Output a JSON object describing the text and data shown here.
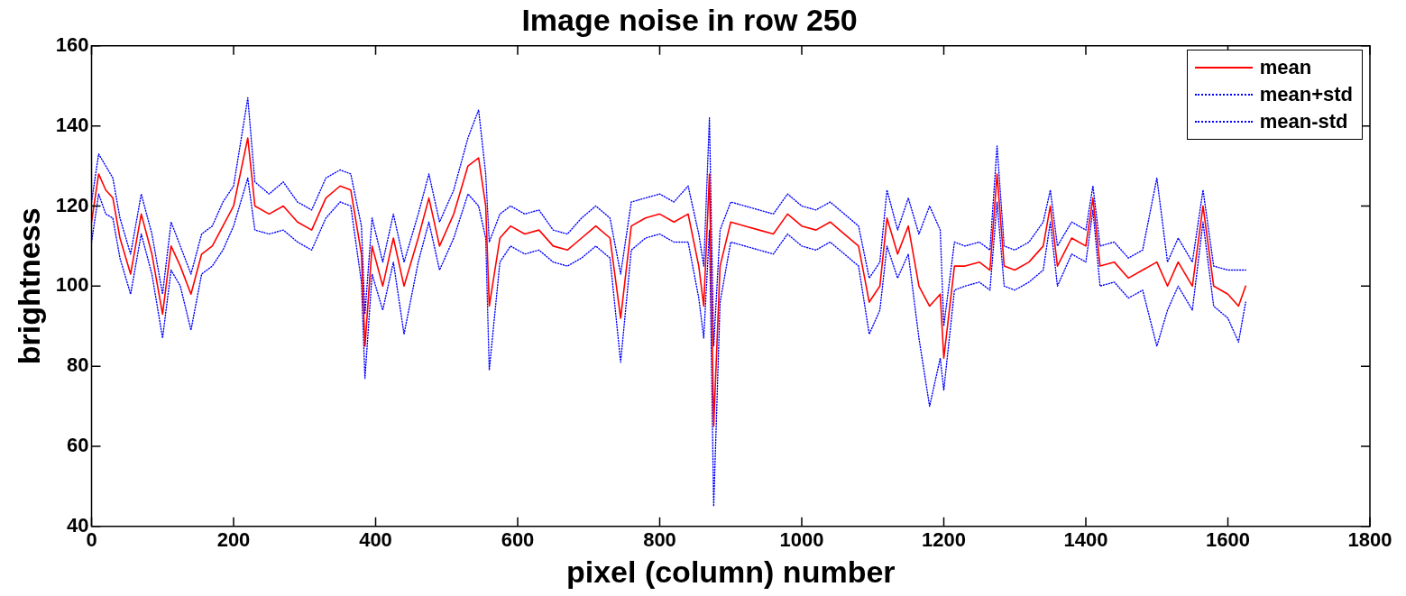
{
  "chart_data": {
    "type": "line",
    "title": "Image noise in row 250",
    "xlabel": "pixel (column) number",
    "ylabel": "brightness",
    "x": [
      0,
      10,
      20,
      30,
      40,
      55,
      70,
      85,
      100,
      112,
      125,
      140,
      155,
      170,
      185,
      200,
      220,
      230,
      250,
      270,
      290,
      310,
      330,
      350,
      365,
      380,
      385,
      395,
      410,
      425,
      440,
      460,
      475,
      490,
      510,
      530,
      545,
      555,
      560,
      575,
      590,
      610,
      630,
      650,
      670,
      690,
      710,
      730,
      745,
      760,
      780,
      800,
      820,
      840,
      855,
      862,
      870,
      876,
      885,
      900,
      920,
      940,
      960,
      980,
      1000,
      1020,
      1040,
      1060,
      1080,
      1095,
      1110,
      1120,
      1135,
      1150,
      1165,
      1180,
      1195,
      1200,
      1215,
      1230,
      1250,
      1265,
      1275,
      1285,
      1300,
      1320,
      1340,
      1350,
      1360,
      1380,
      1400,
      1410,
      1420,
      1440,
      1460,
      1480,
      1500,
      1515,
      1530,
      1550,
      1565,
      1580,
      1600,
      1615,
      1625
    ],
    "series": [
      {
        "name": "mean",
        "color": "#ff0000",
        "line_style": "solid",
        "values": [
          116,
          128,
          124,
          122,
          112,
          103,
          118,
          108,
          93,
          110,
          105,
          98,
          108,
          110,
          115,
          120,
          137,
          120,
          118,
          120,
          116,
          114,
          122,
          125,
          124,
          108,
          85,
          110,
          100,
          112,
          100,
          112,
          122,
          110,
          118,
          130,
          132,
          120,
          95,
          112,
          115,
          113,
          114,
          110,
          109,
          112,
          115,
          112,
          92,
          115,
          117,
          118,
          116,
          118,
          105,
          95,
          128,
          65,
          105,
          116,
          115,
          114,
          113,
          118,
          115,
          114,
          116,
          113,
          110,
          96,
          100,
          117,
          108,
          115,
          100,
          95,
          98,
          82,
          105,
          105,
          106,
          104,
          128,
          105,
          104,
          106,
          110,
          120,
          105,
          112,
          110,
          122,
          105,
          106,
          102,
          104,
          106,
          100,
          106,
          100,
          120,
          100,
          98,
          95,
          100
        ]
      },
      {
        "name": "mean+std",
        "color": "#0000ff",
        "line_style": "dotted",
        "values": [
          121,
          133,
          130,
          127,
          117,
          108,
          123,
          113,
          98,
          116,
          110,
          103,
          113,
          115,
          121,
          125,
          147,
          126,
          123,
          126,
          121,
          119,
          127,
          129,
          128,
          115,
          93,
          117,
          106,
          118,
          106,
          118,
          128,
          116,
          124,
          137,
          144,
          128,
          111,
          118,
          120,
          118,
          119,
          114,
          113,
          117,
          120,
          117,
          103,
          121,
          122,
          123,
          121,
          125,
          113,
          105,
          142,
          85,
          114,
          121,
          120,
          119,
          118,
          123,
          120,
          119,
          121,
          118,
          115,
          102,
          106,
          124,
          114,
          122,
          113,
          120,
          114,
          90,
          111,
          110,
          111,
          109,
          135,
          110,
          109,
          111,
          116,
          124,
          110,
          116,
          114,
          125,
          110,
          111,
          107,
          109,
          127,
          106,
          112,
          106,
          124,
          105,
          104,
          104,
          104
        ]
      },
      {
        "name": "mean-std",
        "color": "#0000ff",
        "line_style": "dotted",
        "values": [
          111,
          123,
          118,
          117,
          107,
          98,
          113,
          103,
          87,
          104,
          100,
          89,
          103,
          105,
          109,
          115,
          127,
          114,
          113,
          114,
          111,
          109,
          117,
          121,
          120,
          101,
          77,
          103,
          94,
          106,
          88,
          106,
          116,
          104,
          112,
          123,
          120,
          112,
          79,
          106,
          110,
          108,
          109,
          106,
          105,
          107,
          110,
          107,
          81,
          109,
          112,
          113,
          111,
          111,
          97,
          87,
          114,
          45,
          96,
          111,
          110,
          109,
          108,
          113,
          110,
          109,
          111,
          108,
          105,
          88,
          94,
          110,
          102,
          108,
          87,
          70,
          82,
          74,
          99,
          100,
          101,
          99,
          121,
          100,
          99,
          101,
          104,
          116,
          100,
          108,
          106,
          119,
          100,
          101,
          97,
          99,
          85,
          94,
          100,
          94,
          116,
          95,
          92,
          86,
          96
        ]
      }
    ],
    "xlim": [
      0,
      1800
    ],
    "xticks": [
      0,
      200,
      400,
      600,
      800,
      1000,
      1200,
      1400,
      1600,
      1800
    ],
    "ylim": [
      40,
      160
    ],
    "yticks": [
      40,
      60,
      80,
      100,
      120,
      140,
      160
    ],
    "grid": false,
    "legend": "top right"
  }
}
